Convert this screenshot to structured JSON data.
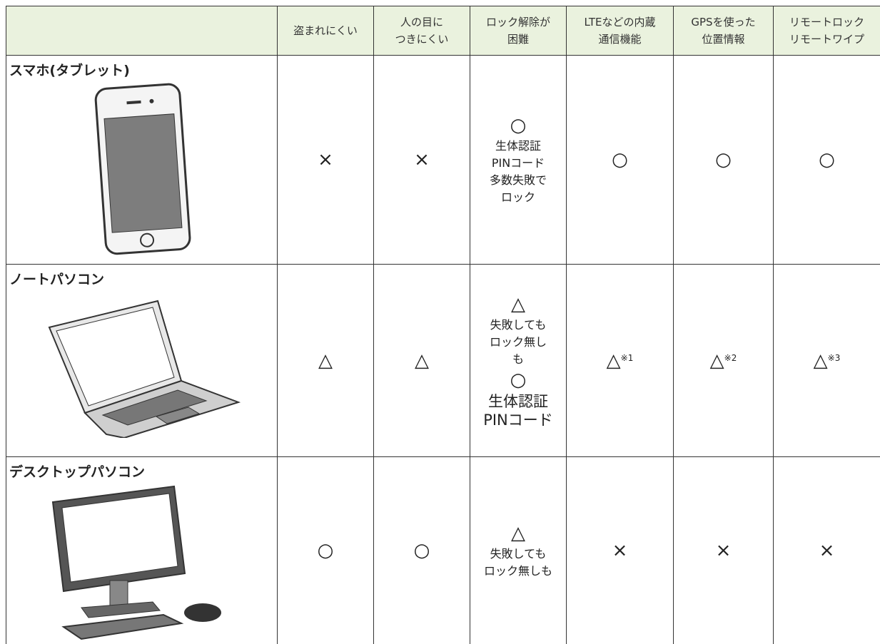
{
  "table": {
    "header": [
      [
        "盗まれにくい"
      ],
      [
        "人の目に",
        "つきにくい"
      ],
      [
        "ロック解除が",
        "困難"
      ],
      [
        "LTEなどの内蔵",
        "通信機能"
      ],
      [
        "GPSを使った",
        "位置情報"
      ],
      [
        "リモートロック",
        "リモートワイプ"
      ]
    ],
    "rows": [
      {
        "label": "スマホ(タブレット)",
        "cells": [
          {
            "lines": [
              "×"
            ]
          },
          {
            "lines": [
              "×"
            ]
          },
          {
            "lines": [
              "○",
              "生体認証",
              "PINコード",
              "多数失敗で",
              "ロック"
            ]
          },
          {
            "lines": [
              "○"
            ]
          },
          {
            "lines": [
              "○"
            ]
          },
          {
            "lines": [
              "○"
            ]
          }
        ]
      },
      {
        "label": "ノートパソコン",
        "cells": [
          {
            "lines": [
              "△"
            ]
          },
          {
            "lines": [
              "△"
            ]
          },
          {
            "lines": [
              "△",
              "失敗しても",
              "ロック無し",
              "も",
              "○",
              "生体認証",
              "PINコード"
            ]
          },
          {
            "lines": [
              "△"
            ],
            "note": "※1"
          },
          {
            "lines": [
              "△"
            ],
            "note": "※2"
          },
          {
            "lines": [
              "△"
            ],
            "note": "※3"
          }
        ]
      },
      {
        "label": "デスクトップパソコン",
        "cells": [
          {
            "lines": [
              "○"
            ]
          },
          {
            "lines": [
              "○"
            ]
          },
          {
            "lines": [
              "△",
              "失敗しても",
              "ロック無しも"
            ]
          },
          {
            "lines": [
              "×"
            ]
          },
          {
            "lines": [
              "×"
            ]
          },
          {
            "lines": [
              "×"
            ]
          }
        ]
      }
    ]
  }
}
